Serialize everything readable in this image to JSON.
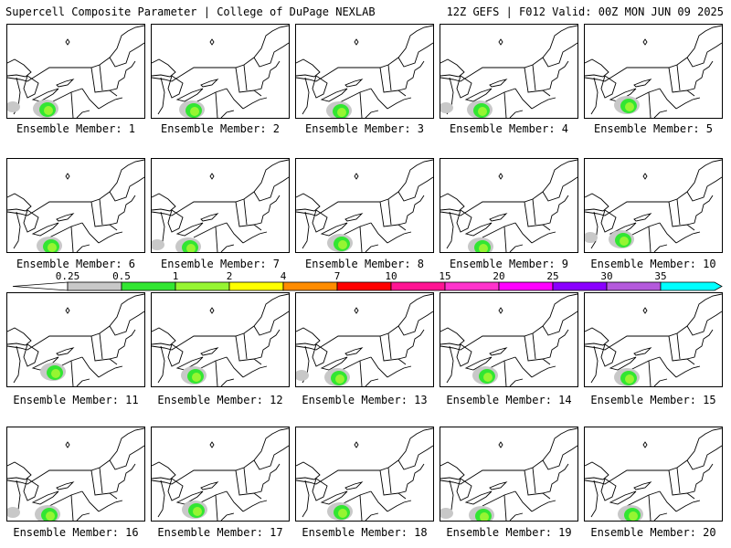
{
  "header": {
    "left": "Supercell Composite Parameter | College of DuPage NEXLAB",
    "right": "12Z GEFS | F012 Valid: 00Z MON JUN 09 2025"
  },
  "member_prefix": "Ensemble Member: ",
  "members": [
    1,
    2,
    3,
    4,
    5,
    6,
    7,
    8,
    9,
    10,
    11,
    12,
    13,
    14,
    15,
    16,
    17,
    18,
    19,
    20
  ],
  "colorbar": {
    "ticks": [
      "0.25",
      "0.5",
      "1",
      "2",
      "4",
      "7",
      "10",
      "15",
      "20",
      "25",
      "30",
      "35"
    ],
    "colors": [
      "#c8c8c8",
      "#32e632",
      "#96f532",
      "#ffff00",
      "#ff8c00",
      "#ff0000",
      "#ff1493",
      "#ff33cc",
      "#ff00ff",
      "#8a00ff",
      "#b45adc",
      "#00ffff"
    ]
  }
}
